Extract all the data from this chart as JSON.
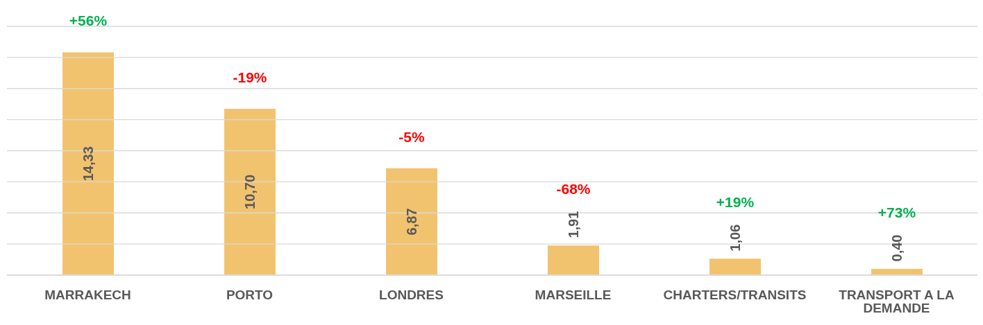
{
  "chart_data": {
    "type": "bar",
    "categories": [
      "MARRAKECH",
      "PORTO",
      "LONDRES",
      "MARSEILLE",
      "CHARTERS/TRANSITS",
      "TRANSPORT A LA DEMANDE"
    ],
    "values": [
      14.33,
      10.7,
      6.87,
      1.91,
      1.06,
      0.4
    ],
    "value_labels": [
      "14,33",
      "10,70",
      "6,87",
      "1,91",
      "1,06",
      "0,40"
    ],
    "color": "#f2c36e",
    "ylim": [
      0,
      16
    ],
    "yticks": [
      {
        "value": 0,
        "label": null
      },
      {
        "value": 2,
        "label": null
      },
      {
        "value": 4,
        "label": null
      },
      {
        "value": 6,
        "label": null
      },
      {
        "value": 8,
        "label": null
      },
      {
        "value": 10,
        "label": null
      },
      {
        "value": 12,
        "label": null
      },
      {
        "value": 14,
        "label": null
      },
      {
        "value": 16,
        "label": null
      }
    ],
    "grid": "y",
    "tick_labels": "x",
    "annotations": [
      "+56%",
      "-19%",
      "-5%",
      "-68%",
      "+19%",
      "+73%"
    ]
  }
}
